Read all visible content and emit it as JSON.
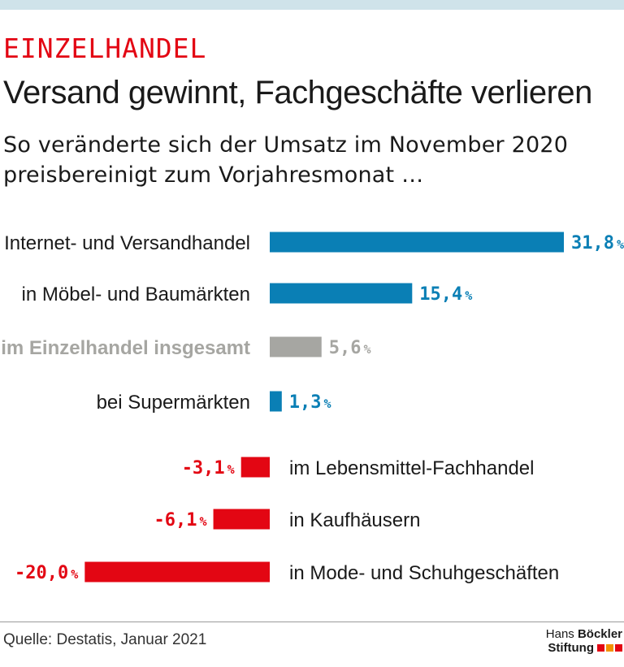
{
  "header": {
    "kicker": "EINZELHANDEL",
    "title": "Versand gewinnt, Fachgeschäfte verlieren",
    "subtitle": "So veränderte sich der Umsatz im November 2020 preisbereinigt zum Vorjahresmonat …"
  },
  "chart_data": {
    "type": "bar",
    "orientation": "horizontal",
    "categories": [
      "im Internet- und Versandhandel",
      "in Möbel- und Baumärkten",
      "im Einzelhandel insgesamt",
      "bei Supermärkten",
      "im Lebensmittel-Fachhandel",
      "in Kaufhäusern",
      "in Mode- und Schuhgeschäften"
    ],
    "values": [
      31.8,
      15.4,
      5.6,
      1.3,
      -3.1,
      -6.1,
      -20.0
    ],
    "value_labels": [
      "31,8",
      "15,4",
      "5,6",
      "1,3",
      "-3,1",
      "-6,1",
      "-20,0"
    ],
    "unit": "%",
    "highlight_index": 2,
    "colors": {
      "positive": "#0a7fb5",
      "negative": "#e30613",
      "total": "#a6a6a2"
    },
    "grid": false
  },
  "footer": {
    "source": "Quelle: Destatis, Januar 2021",
    "logo_line1_light": "Hans ",
    "logo_line1_bold": "Böckler",
    "logo_line2_bold": "Stiftung",
    "logo_colors": [
      "#e30613",
      "#f39200",
      "#e30613"
    ]
  }
}
